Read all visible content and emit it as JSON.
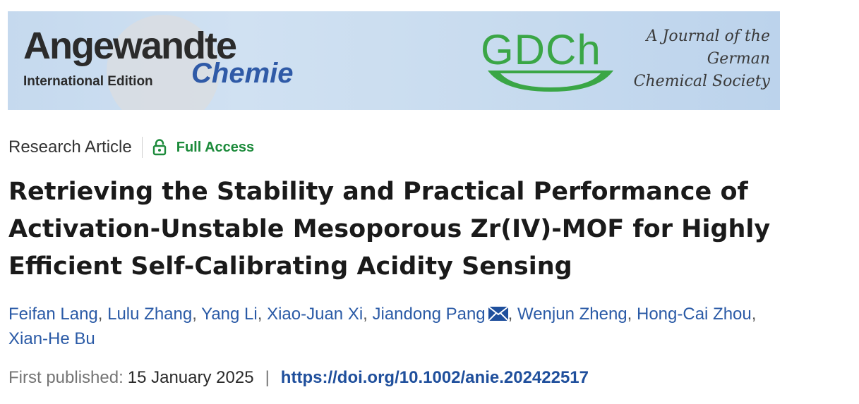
{
  "banner": {
    "journal_name": "Angewandte",
    "edition": "International Edition",
    "chemie": "Chemie",
    "society_logo": "GDCh",
    "tagline_lines": [
      "A Journal of the",
      "German",
      "Chemical Society"
    ]
  },
  "meta": {
    "article_type": "Research Article",
    "access_label": "Full Access",
    "access_icon": "lock-open-icon",
    "access_color": "#1b8a3a"
  },
  "title": "Retrieving the Stability and Practical Performance of Activation-Unstable Mesoporous Zr(IV)-MOF for Highly Efficient Self-Calibrating Acidity Sensing",
  "authors": [
    "Feifan Lang",
    "Lulu Zhang",
    "Yang Li",
    "Xiao-Juan Xi",
    "Jiandong Pang",
    "Wenjun Zheng",
    "Hong-Cai Zhou",
    "Xian-He Bu"
  ],
  "corresponding_icon": "mail-icon",
  "publication": {
    "label": "First published:",
    "date": "15 January 2025",
    "separator": "|",
    "doi": "https://doi.org/10.1002/anie.202422517"
  },
  "colors": {
    "link": "#2a5aa6",
    "doi": "#1f4f9c",
    "gdch_green": "#3aa646",
    "chemie_blue": "#2f5aa7"
  }
}
